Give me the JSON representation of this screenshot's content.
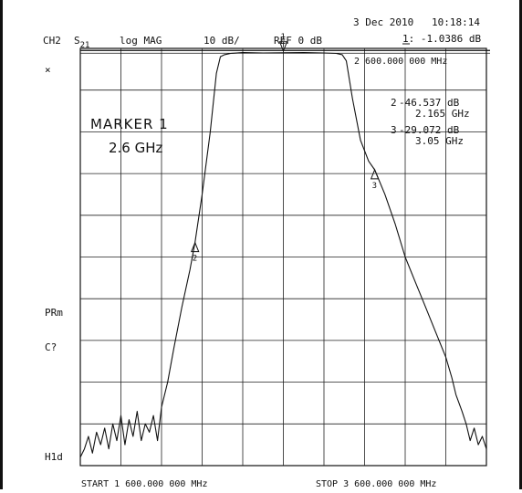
{
  "header": {
    "channel": "CH2",
    "param_main": "S",
    "param_sub": "21",
    "format": "log MAG",
    "scale": "10 dB/",
    "reference": "REF 0 dB",
    "date": "3 Dec 2010",
    "time": "10:18:14",
    "active_marker_line": "1: -1.0386 dB",
    "active_marker_freq": "2 600.000 000 MHz"
  },
  "left_annotations": {
    "star": "×",
    "prm": "PRm",
    "cq": "C?",
    "hld": "H1d"
  },
  "marker_title": "MARKER 1",
  "marker_value": "2.6 GHz",
  "marker_table": [
    {
      "id": "2",
      "value": "-46.537 dB",
      "freq": "2.165 GHz"
    },
    {
      "id": "3",
      "value": "-29.072 dB",
      "freq": "3.05 GHz"
    }
  ],
  "footer": {
    "start": "START 1 600.000 000 MHz",
    "stop": "STOP 3 600.000 000 MHz"
  },
  "chart_data": {
    "type": "line",
    "xlim": [
      1600,
      3600
    ],
    "ylim": [
      -100,
      0
    ],
    "x_unit": "MHz",
    "y_unit": "dB",
    "grid": true,
    "series": [
      {
        "x": [
          1600,
          1620,
          1640,
          1660,
          1680,
          1700,
          1720,
          1740,
          1760,
          1780,
          1800,
          1820,
          1840,
          1860,
          1880,
          1900,
          1920,
          1940,
          1960,
          1980,
          2000,
          2030,
          2060,
          2100,
          2140,
          2165,
          2200,
          2240,
          2270,
          2290,
          2310,
          2340,
          2400,
          2500,
          2600,
          2700,
          2800,
          2860,
          2890,
          2910,
          2940,
          2980,
          3020,
          3050,
          3100,
          3150,
          3200,
          3250,
          3300,
          3350,
          3400,
          3430,
          3450,
          3480,
          3500,
          3520,
          3540,
          3560,
          3580,
          3600
        ],
        "y": [
          -98,
          -96,
          -93,
          -97,
          -92,
          -95,
          -91,
          -96,
          -90,
          -94,
          -88,
          -95,
          -89,
          -93,
          -87,
          -94,
          -90,
          -92,
          -88,
          -94,
          -86,
          -80,
          -72,
          -62,
          -53,
          -46.5,
          -35,
          -20,
          -6,
          -2,
          -1.5,
          -1.2,
          -1.0,
          -1.1,
          -1.04,
          -1.0,
          -1.1,
          -1.2,
          -1.5,
          -3,
          -12,
          -22,
          -27,
          -29.1,
          -35,
          -42,
          -50,
          -56,
          -62,
          -68,
          -74,
          -79,
          -83,
          -87,
          -90,
          -94,
          -91,
          -95,
          -93,
          -96
        ]
      }
    ],
    "markers": [
      {
        "label": "1",
        "x": 2600,
        "y": -1.04
      },
      {
        "label": "2",
        "x": 2165,
        "y": -46.537
      },
      {
        "label": "3",
        "x": 3050,
        "y": -29.072
      }
    ],
    "reference_line_y": -0.5
  }
}
